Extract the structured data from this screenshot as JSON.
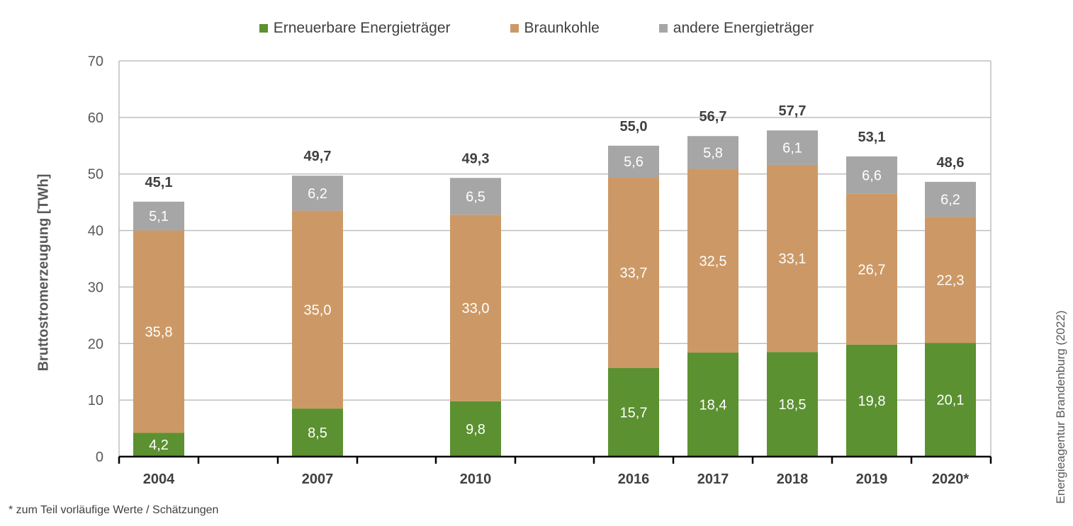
{
  "chart_data": {
    "type": "bar",
    "stacked": true,
    "categories": [
      "2004",
      "2007",
      "2010",
      "2016",
      "2017",
      "2018",
      "2019",
      "2020*"
    ],
    "series": [
      {
        "name": "Erneuerbare Energieträger",
        "color": "#5b9130",
        "values": [
          4.2,
          8.5,
          9.8,
          15.7,
          18.4,
          18.5,
          19.8,
          20.1
        ],
        "labels": [
          "4,2",
          "8,5",
          "9,8",
          "15,7",
          "18,4",
          "18,5",
          "19,8",
          "20,1"
        ]
      },
      {
        "name": "Braunkohle",
        "color": "#cc9966",
        "values": [
          35.8,
          35.0,
          33.0,
          33.7,
          32.5,
          33.1,
          26.7,
          22.3
        ],
        "labels": [
          "35,8",
          "35,0",
          "33,0",
          "33,7",
          "32,5",
          "33,1",
          "26,7",
          "22,3"
        ]
      },
      {
        "name": "andere Energieträger",
        "color": "#a6a6a6",
        "values": [
          5.1,
          6.2,
          6.5,
          5.6,
          5.8,
          6.1,
          6.6,
          6.2
        ],
        "labels": [
          "5,1",
          "6,2",
          "6,5",
          "5,6",
          "5,8",
          "6,1",
          "6,6",
          "6,2"
        ]
      }
    ],
    "totals": [
      45.1,
      49.7,
      49.3,
      55.0,
      56.7,
      57.7,
      53.1,
      48.6
    ],
    "total_labels": [
      "45,1",
      "49,7",
      "49,3",
      "55,0",
      "56,7",
      "57,7",
      "53,1",
      "48,6"
    ],
    "ylabel": "Bruttostromerzeugung [TWh]",
    "ylim": [
      0,
      70
    ],
    "yticks": [
      0,
      10,
      20,
      30,
      40,
      50,
      60,
      70
    ],
    "grid": true,
    "legend_position": "top-center"
  },
  "legend": [
    "Erneuerbare Energieträger",
    "Braunkohle",
    "andere Energieträger"
  ],
  "source": "Energieagentur Brandenburg (2022)",
  "footnote": "* zum Teil vorläufige Werte / Schätzungen"
}
